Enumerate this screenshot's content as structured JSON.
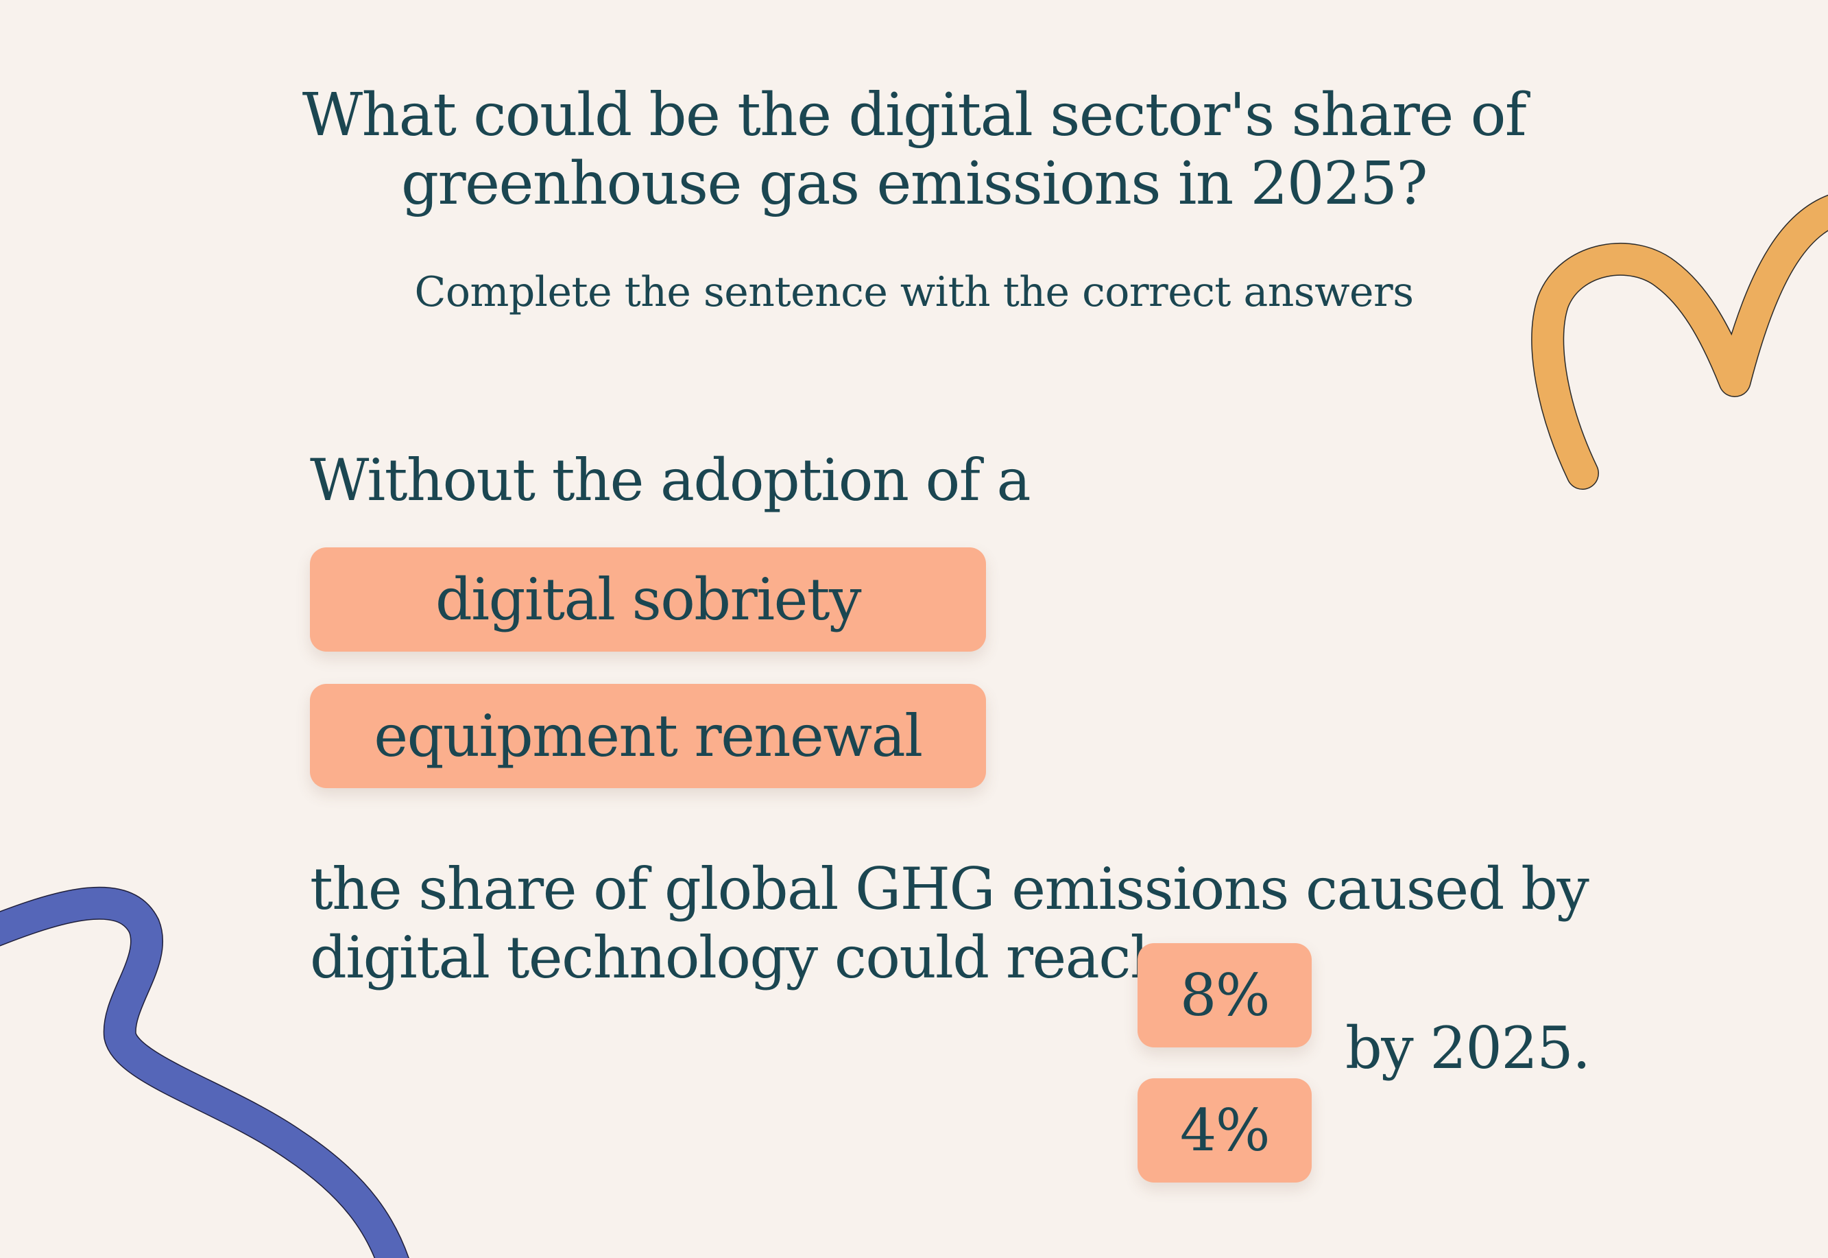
{
  "question": {
    "line1": "What could be the digital sector's share of",
    "line2": "greenhouse gas emissions in 2025?"
  },
  "instruction": "Complete the sentence with the correct answers",
  "sentence": {
    "part1": "Without the adoption of a",
    "part2_line1": "the share of global GHG emissions caused by",
    "part2_line2": "digital technology could reach",
    "part3": "by 2025."
  },
  "options_blank1": [
    {
      "label": "digital sobriety"
    },
    {
      "label": "equipment renewal"
    }
  ],
  "options_blank2": [
    {
      "label": "8%"
    },
    {
      "label": "4%"
    }
  ],
  "colors": {
    "background": "#f8f2ed",
    "text": "#1b4651",
    "chip": "#fbaf8d",
    "decoration_orange": "#edae5e",
    "decoration_blue": "#5566b8"
  }
}
